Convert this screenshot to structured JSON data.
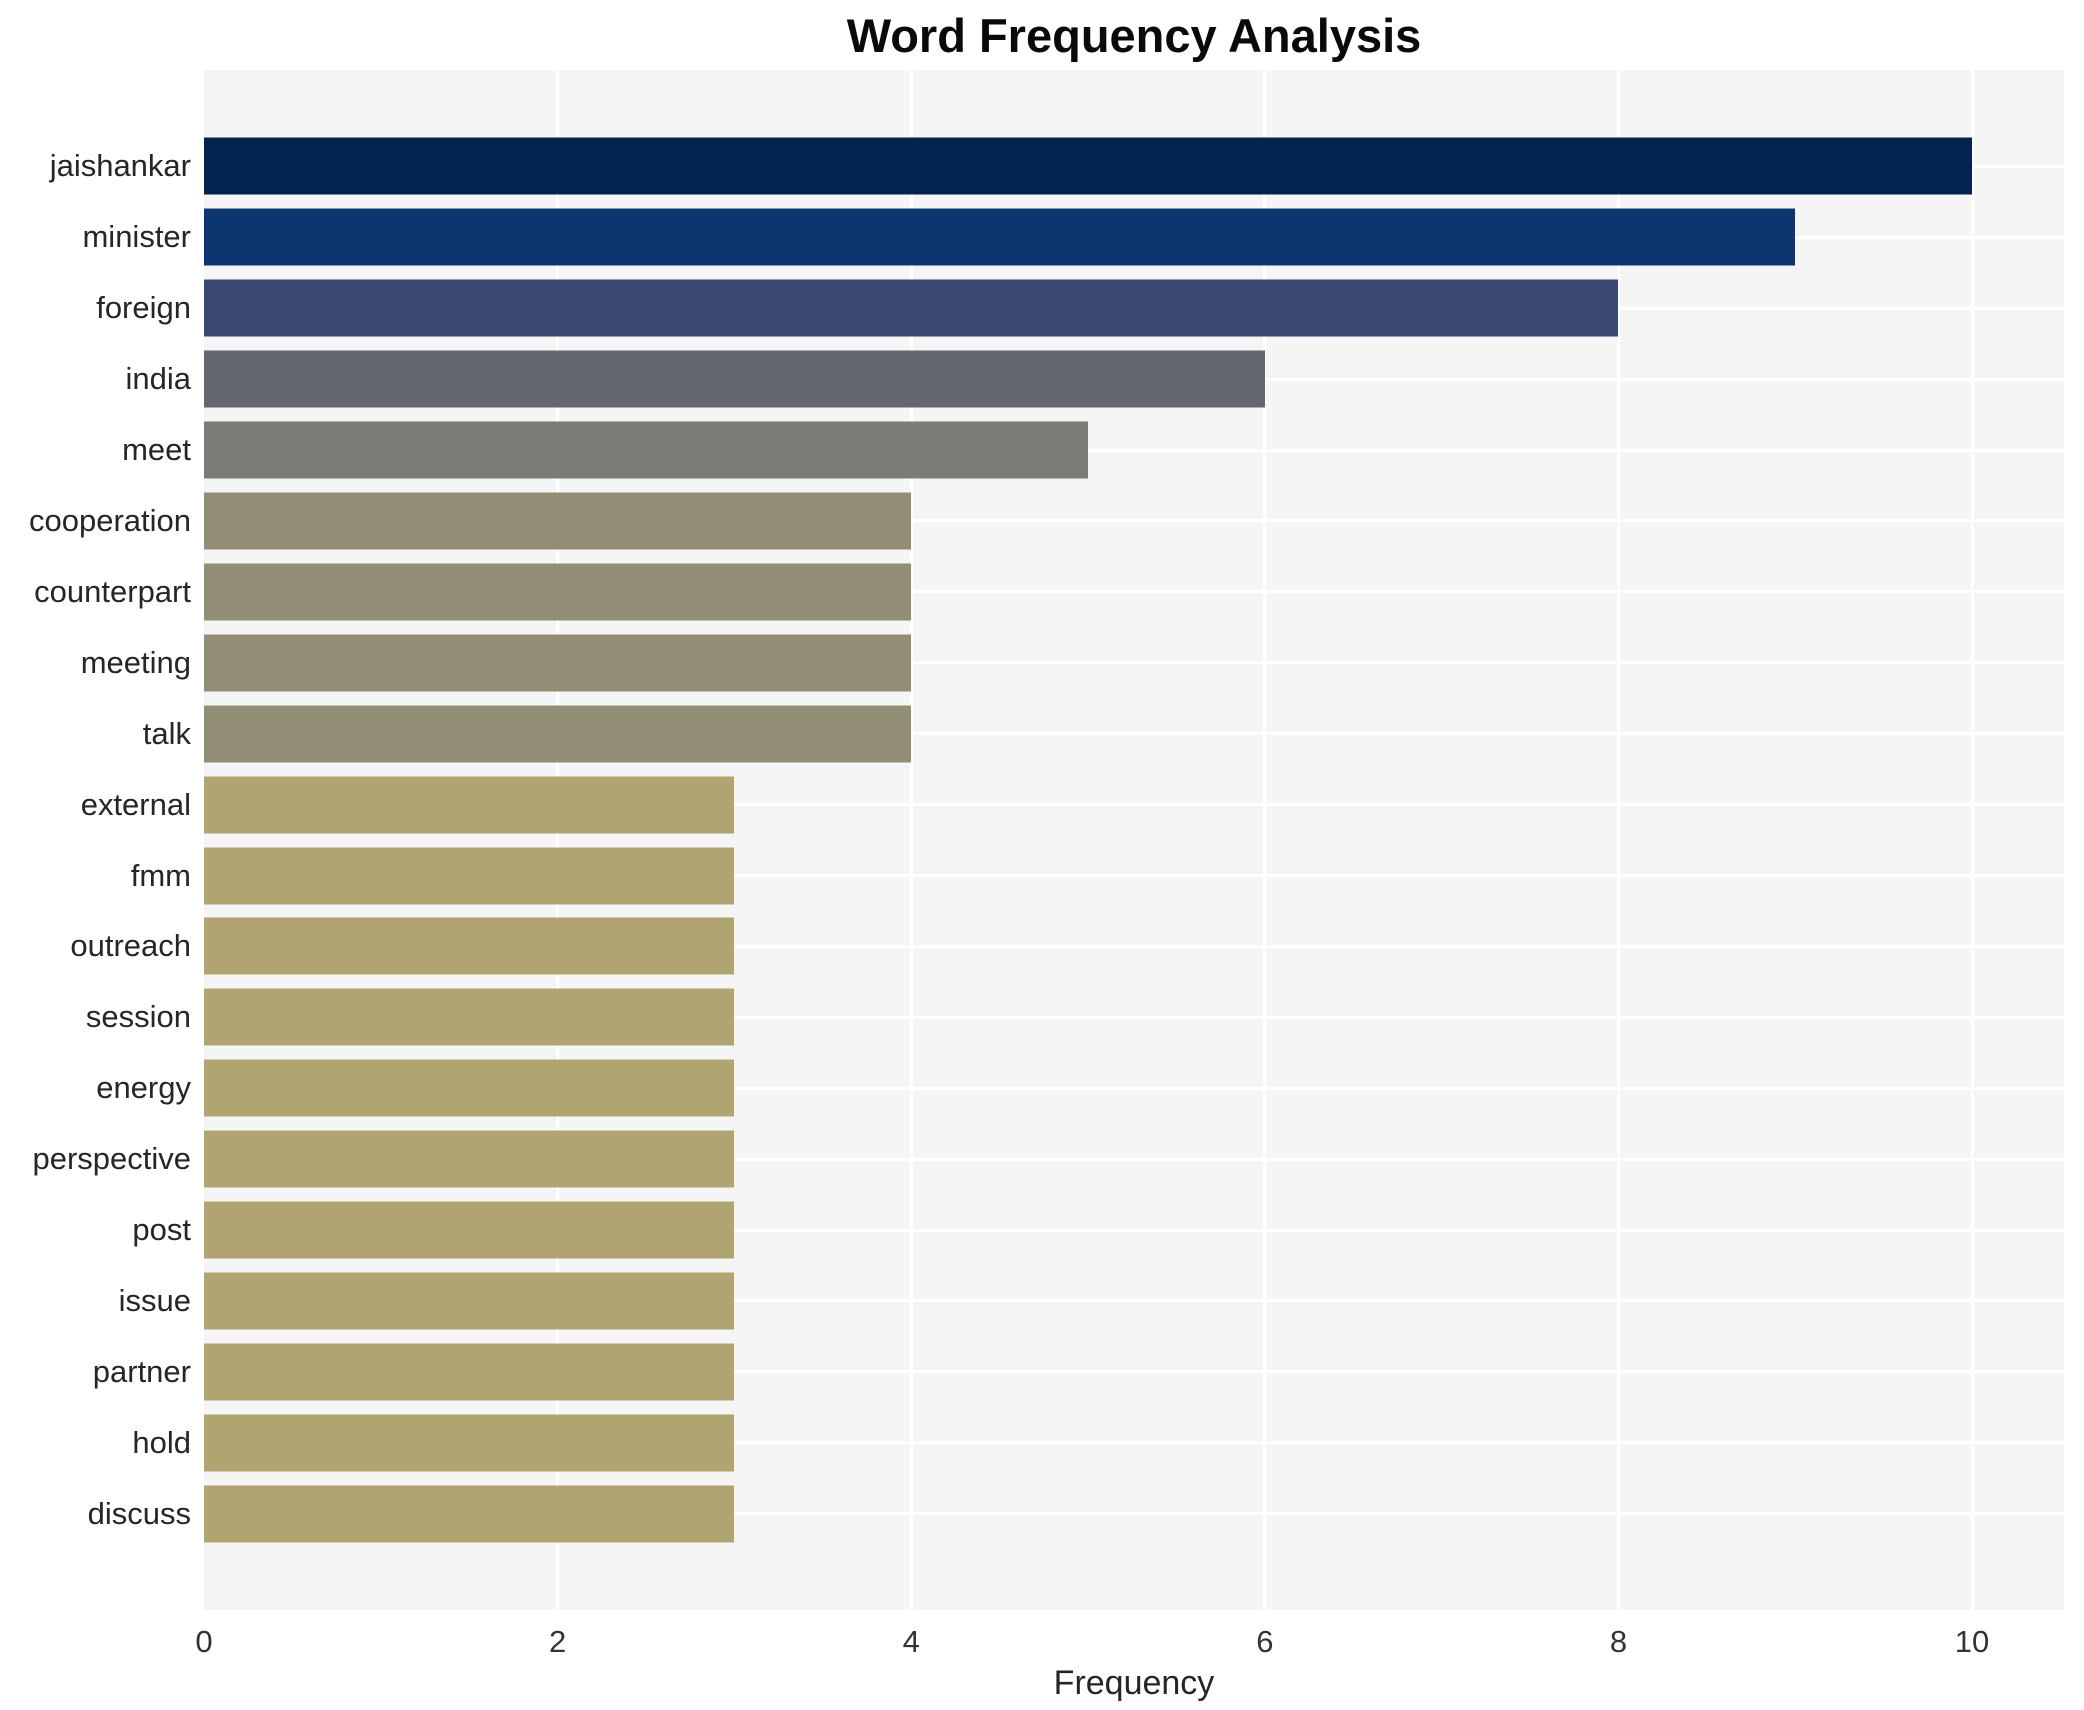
{
  "chart_data": {
    "type": "bar",
    "orientation": "horizontal",
    "title": "Word Frequency Analysis",
    "xlabel": "Frequency",
    "ylabel": "",
    "categories": [
      "jaishankar",
      "minister",
      "foreign",
      "india",
      "meet",
      "cooperation",
      "counterpart",
      "meeting",
      "talk",
      "external",
      "fmm",
      "outreach",
      "session",
      "energy",
      "perspective",
      "post",
      "issue",
      "partner",
      "hold",
      "discuss"
    ],
    "values": [
      10,
      9,
      8,
      6,
      5,
      4,
      4,
      4,
      4,
      3,
      3,
      3,
      3,
      3,
      3,
      3,
      3,
      3,
      3,
      3
    ],
    "bar_colors": [
      "#02234e",
      "#0d356f",
      "#3a4971",
      "#64676f",
      "#7b7b78",
      "#938e76",
      "#938e76",
      "#938e76",
      "#938e76",
      "#b0a571",
      "#b0a571",
      "#b0a571",
      "#b0a571",
      "#b0a571",
      "#b0a571",
      "#b0a571",
      "#b0a571",
      "#b0a571",
      "#b0a571",
      "#b0a571"
    ],
    "colormap": "cividis",
    "x_ticks": [
      0,
      2,
      4,
      6,
      8,
      10
    ],
    "xlim": [
      0,
      10.52
    ],
    "grid": true,
    "legend": "none",
    "plot_background": "#f6f5f6",
    "grid_color": "#ffffff"
  }
}
